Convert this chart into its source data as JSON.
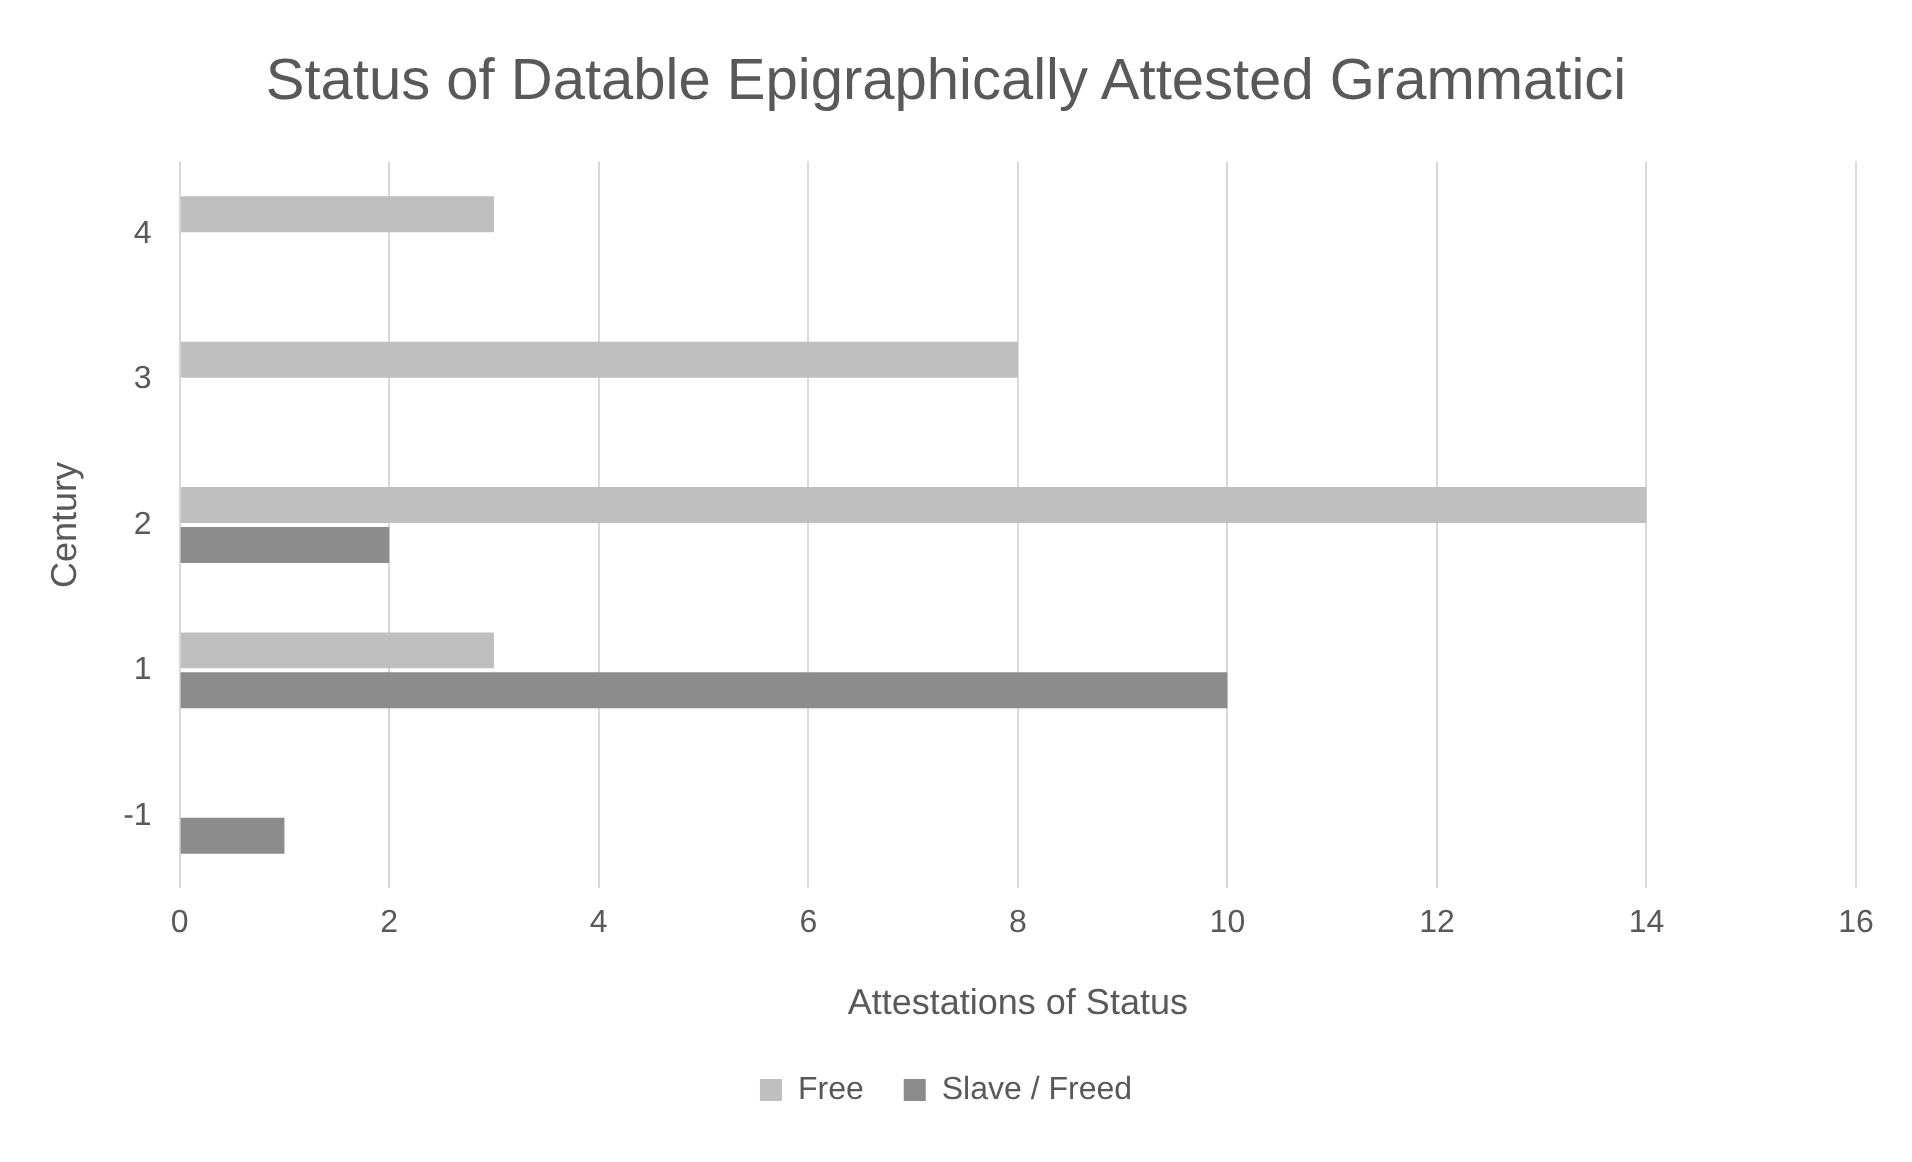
{
  "chart_data": {
    "type": "bar",
    "orientation": "horizontal",
    "title": "Status of Datable Epigraphically Attested Grammatici",
    "xlabel": "Attestations of Status",
    "ylabel": "Century",
    "categories": [
      "4",
      "3",
      "2",
      "1",
      "-1"
    ],
    "series": [
      {
        "name": "Free",
        "color": "#bfbfbf",
        "values": [
          3,
          8,
          14,
          3,
          null
        ]
      },
      {
        "name": "Slave / Freed",
        "color": "#8c8c8c",
        "values": [
          null,
          null,
          2,
          10,
          1
        ]
      }
    ],
    "xlim": [
      0,
      16
    ],
    "xticks": [
      0,
      2,
      4,
      6,
      8,
      10,
      12,
      14,
      16
    ],
    "grid": "x",
    "legend": "bottom"
  }
}
